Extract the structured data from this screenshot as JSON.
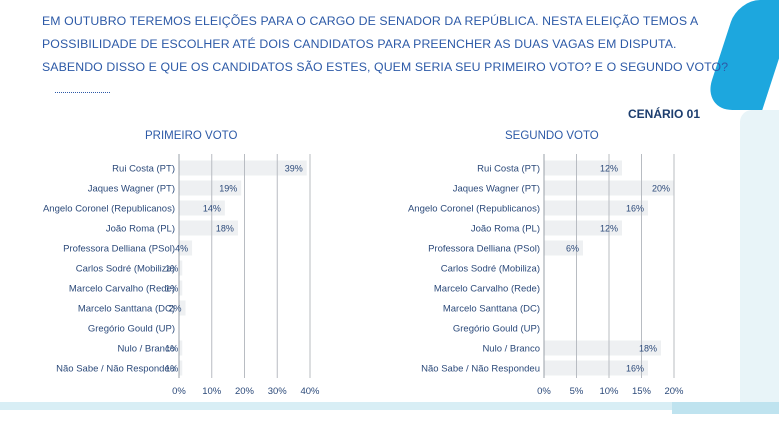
{
  "question": {
    "lines": [
      "EM OUTUBRO TEREMOS ELEIÇÕES PARA O CARGO DE SENADOR DA REPÚBLICA. NESTA ELEIÇÃO TEMOS A",
      "POSSIBILIDADE DE ESCOLHER ATÉ DOIS CANDIDATOS PARA PREENCHER AS DUAS VAGAS EM DISPUTA.",
      "SABENDO DISSO E QUE OS CANDIDATOS SÃO ESTES, QUEM SERIA SEU PRIMEIRO VOTO? E O SEGUNDO VOTO?"
    ]
  },
  "scenario": "CENÁRIO 01",
  "colors": {
    "bar": "#eef0f2",
    "grid": "#b8bcc2",
    "text": "#2c4a7a",
    "title": "#2d5aa7",
    "accent": "#1da7de"
  },
  "chart_data": [
    {
      "type": "bar",
      "orientation": "horizontal",
      "title": "PRIMEIRO VOTO",
      "categories": [
        "Rui Costa (PT)",
        "Jaques Wagner (PT)",
        "Angelo Coronel (Republicanos)",
        "João Roma (PL)",
        "Professora Delliana (PSol)",
        "Carlos Sodré (Mobiliza)",
        "Marcelo Carvalho (Rede)",
        "Marcelo Santtana (DC)",
        "Gregório Gould (UP)",
        "Nulo / Branco",
        "Não Sabe / Não Respondeu"
      ],
      "values": [
        39,
        19,
        14,
        18,
        4,
        1,
        1,
        2,
        0,
        1,
        1
      ],
      "value_labels": [
        "39%",
        "19%",
        "14%",
        "18%",
        "4%",
        "1%",
        "1%",
        "2%",
        "",
        "1%",
        "1%"
      ],
      "xlim": [
        0,
        40
      ],
      "ticks": [
        0,
        10,
        20,
        30,
        40
      ],
      "tick_labels": [
        "0%",
        "10%",
        "20%",
        "30%",
        "40%"
      ],
      "grid": true
    },
    {
      "type": "bar",
      "orientation": "horizontal",
      "title": "SEGUNDO VOTO",
      "categories": [
        "Rui Costa (PT)",
        "Jaques Wagner (PT)",
        "Angelo Coronel (Republicanos)",
        "João Roma (PL)",
        "Professora Delliana (PSol)",
        "Carlos Sodré (Mobiliza)",
        "Marcelo Carvalho (Rede)",
        "Marcelo Santtana (DC)",
        "Gregório Gould (UP)",
        "Nulo / Branco",
        "Não Sabe / Não Respondeu"
      ],
      "values": [
        12,
        20,
        16,
        12,
        6,
        0,
        0,
        0,
        0,
        18,
        16
      ],
      "value_labels": [
        "12%",
        "20%",
        "16%",
        "12%",
        "6%",
        "",
        "",
        "",
        "",
        "18%",
        "16%"
      ],
      "xlim": [
        0,
        20
      ],
      "ticks": [
        0,
        5,
        10,
        15,
        20
      ],
      "tick_labels": [
        "0%",
        "5%",
        "10%",
        "15%",
        "20%"
      ],
      "grid": true
    }
  ]
}
